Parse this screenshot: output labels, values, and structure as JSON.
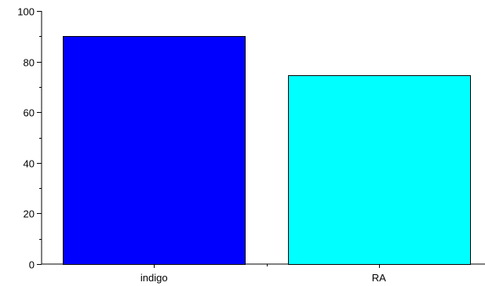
{
  "chart_data": {
    "type": "bar",
    "categories": [
      "indigo",
      "RA"
    ],
    "values": [
      90,
      74.5
    ],
    "colors": [
      "#0000FF",
      "#00FFFF"
    ],
    "title": "",
    "xlabel": "",
    "ylabel": "",
    "ylim": [
      0,
      100
    ],
    "yticks": [
      "0",
      "20",
      "40",
      "60",
      "80",
      "100"
    ],
    "grid": false,
    "legend": "none"
  }
}
